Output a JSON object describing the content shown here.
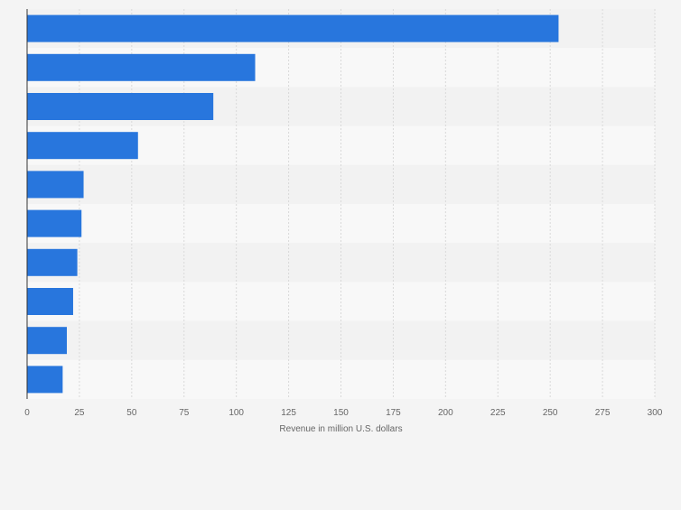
{
  "chart_data": {
    "type": "bar",
    "orientation": "horizontal",
    "title": "",
    "xlabel": "Revenue in million U.S. dollars",
    "ylabel": "",
    "xlim": [
      0,
      300
    ],
    "x_ticks": [
      0,
      25,
      50,
      75,
      100,
      125,
      150,
      175,
      200,
      225,
      250,
      275,
      300
    ],
    "category_labels_visible": false,
    "values": [
      254,
      109,
      89,
      53,
      27,
      26,
      24,
      22,
      19,
      17
    ],
    "grid": true,
    "legend": "none",
    "colors": {
      "bar": "#2876dd",
      "row_band_dark": "#f2f2f2",
      "row_band_light": "#f8f8f8",
      "gridline": "#d9d9d9",
      "axis": "#333333",
      "tick_label": "#666666"
    }
  }
}
